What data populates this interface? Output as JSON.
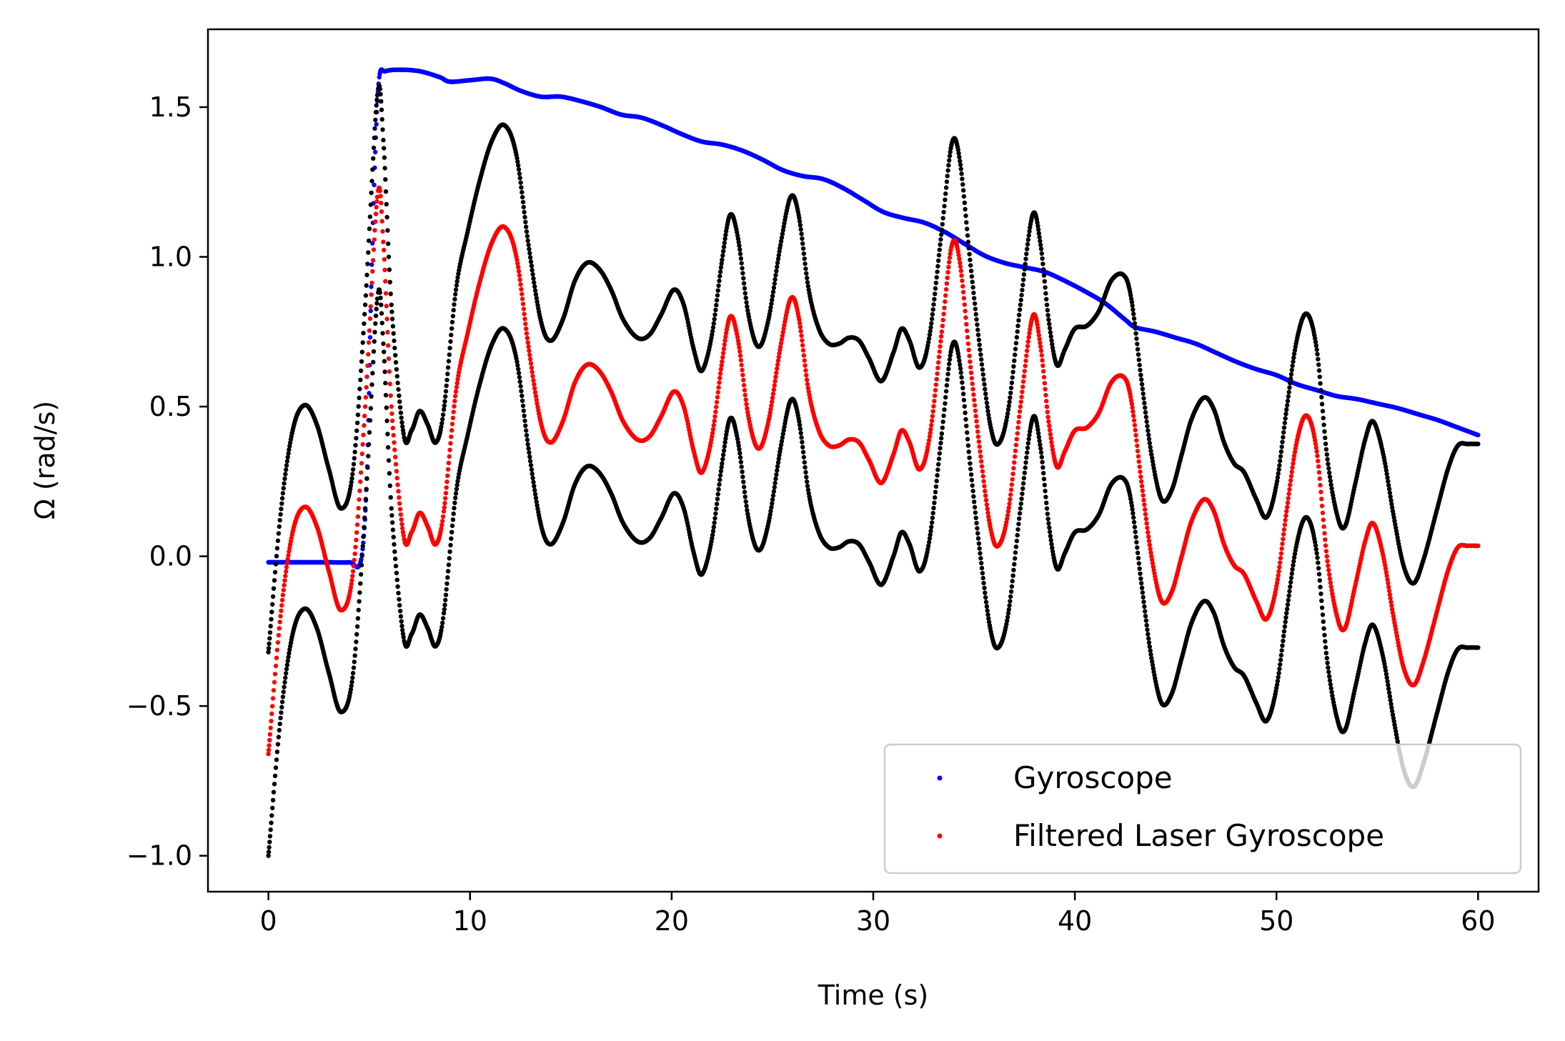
{
  "chart_data": {
    "type": "scatter",
    "title": "",
    "xlabel": "Time (s)",
    "ylabel": "Ω (rad/s)",
    "xlim": [
      -3,
      63
    ],
    "ylim": [
      -1.12,
      1.76
    ],
    "xticks": [
      0,
      10,
      20,
      30,
      40,
      50,
      60
    ],
    "xtick_labels": [
      "0",
      "10",
      "20",
      "30",
      "40",
      "50",
      "60"
    ],
    "yticks": [
      -1.0,
      -0.5,
      0.0,
      0.5,
      1.0,
      1.5
    ],
    "ytick_labels": [
      "−1.0",
      "−0.5",
      "0.0",
      "0.5",
      "1.0",
      "1.5"
    ],
    "grid": false,
    "legend_position": "lower-right",
    "colors": {
      "gyroscope": "#0000ff",
      "filtered": "#ff0000",
      "bounds": "#000000"
    },
    "series": [
      {
        "name": "Gyroscope",
        "color": "#0000ff",
        "in_legend": true,
        "points": [
          [
            0,
            -0.02
          ],
          [
            1,
            -0.02
          ],
          [
            2,
            -0.02
          ],
          [
            3,
            -0.02
          ],
          [
            4,
            -0.02
          ],
          [
            4.6,
            -0.01
          ],
          [
            4.9,
            0.3
          ],
          [
            5.1,
            0.9
          ],
          [
            5.3,
            1.35
          ],
          [
            5.5,
            1.6
          ],
          [
            5.8,
            1.62
          ],
          [
            6.5,
            1.625
          ],
          [
            7.5,
            1.62
          ],
          [
            8.5,
            1.6
          ],
          [
            9,
            1.585
          ],
          [
            10,
            1.59
          ],
          [
            11,
            1.595
          ],
          [
            11.7,
            1.58
          ],
          [
            12.5,
            1.555
          ],
          [
            13.5,
            1.535
          ],
          [
            14.5,
            1.535
          ],
          [
            15.5,
            1.52
          ],
          [
            16.5,
            1.5
          ],
          [
            17.5,
            1.475
          ],
          [
            18.5,
            1.465
          ],
          [
            19.5,
            1.44
          ],
          [
            20.5,
            1.41
          ],
          [
            21.5,
            1.385
          ],
          [
            22.5,
            1.375
          ],
          [
            23.5,
            1.355
          ],
          [
            24.5,
            1.325
          ],
          [
            25.5,
            1.29
          ],
          [
            26.5,
            1.27
          ],
          [
            27.5,
            1.26
          ],
          [
            28.5,
            1.23
          ],
          [
            29.5,
            1.19
          ],
          [
            30.5,
            1.15
          ],
          [
            31.5,
            1.13
          ],
          [
            32.5,
            1.115
          ],
          [
            33.5,
            1.085
          ],
          [
            34.5,
            1.045
          ],
          [
            35.5,
            1.005
          ],
          [
            36.5,
            0.98
          ],
          [
            37.5,
            0.965
          ],
          [
            38.5,
            0.95
          ],
          [
            39.5,
            0.92
          ],
          [
            40.5,
            0.885
          ],
          [
            41.5,
            0.845
          ],
          [
            42.5,
            0.79
          ],
          [
            43,
            0.765
          ],
          [
            44,
            0.75
          ],
          [
            45,
            0.73
          ],
          [
            46,
            0.71
          ],
          [
            47,
            0.68
          ],
          [
            48,
            0.65
          ],
          [
            49,
            0.625
          ],
          [
            50,
            0.605
          ],
          [
            51,
            0.575
          ],
          [
            52,
            0.555
          ],
          [
            53,
            0.535
          ],
          [
            54,
            0.525
          ],
          [
            55,
            0.51
          ],
          [
            56,
            0.495
          ],
          [
            57,
            0.475
          ],
          [
            58,
            0.455
          ],
          [
            59,
            0.43
          ],
          [
            60,
            0.405
          ]
        ]
      },
      {
        "name": "Filtered Laser Gyroscope",
        "color": "#ff0000",
        "in_legend": true,
        "points": [
          [
            0,
            -0.66
          ],
          [
            0.6,
            -0.2
          ],
          [
            1.2,
            0.08
          ],
          [
            1.8,
            0.165
          ],
          [
            2.4,
            0.1
          ],
          [
            3,
            -0.05
          ],
          [
            3.6,
            -0.18
          ],
          [
            4.2,
            -0.05
          ],
          [
            4.8,
            0.5
          ],
          [
            5.4,
            1.2
          ],
          [
            5.7,
            1.05
          ],
          [
            6.1,
            0.5
          ],
          [
            6.7,
            0.07
          ],
          [
            7.1,
            0.08
          ],
          [
            7.5,
            0.145
          ],
          [
            7.9,
            0.1
          ],
          [
            8.3,
            0.04
          ],
          [
            8.7,
            0.15
          ],
          [
            9.3,
            0.55
          ],
          [
            9.9,
            0.75
          ],
          [
            10.5,
            0.92
          ],
          [
            11.1,
            1.05
          ],
          [
            11.7,
            1.1
          ],
          [
            12.3,
            1.0
          ],
          [
            12.9,
            0.7
          ],
          [
            13.5,
            0.45
          ],
          [
            14,
            0.38
          ],
          [
            14.6,
            0.45
          ],
          [
            15.2,
            0.58
          ],
          [
            15.8,
            0.64
          ],
          [
            16.4,
            0.62
          ],
          [
            17,
            0.55
          ],
          [
            17.6,
            0.45
          ],
          [
            18.3,
            0.39
          ],
          [
            18.9,
            0.4
          ],
          [
            19.5,
            0.47
          ],
          [
            20.1,
            0.55
          ],
          [
            20.6,
            0.5
          ],
          [
            21.1,
            0.35
          ],
          [
            21.5,
            0.28
          ],
          [
            22,
            0.4
          ],
          [
            22.5,
            0.65
          ],
          [
            22.9,
            0.8
          ],
          [
            23.3,
            0.72
          ],
          [
            23.8,
            0.47
          ],
          [
            24.3,
            0.36
          ],
          [
            24.8,
            0.45
          ],
          [
            25.4,
            0.7
          ],
          [
            25.9,
            0.86
          ],
          [
            26.3,
            0.8
          ],
          [
            26.8,
            0.55
          ],
          [
            27.3,
            0.42
          ],
          [
            27.8,
            0.37
          ],
          [
            28.3,
            0.37
          ],
          [
            28.8,
            0.39
          ],
          [
            29.3,
            0.38
          ],
          [
            29.8,
            0.32
          ],
          [
            30.4,
            0.245
          ],
          [
            31,
            0.34
          ],
          [
            31.4,
            0.42
          ],
          [
            31.8,
            0.38
          ],
          [
            32.3,
            0.29
          ],
          [
            32.8,
            0.4
          ],
          [
            33.4,
            0.75
          ],
          [
            33.9,
            1.04
          ],
          [
            34.3,
            0.98
          ],
          [
            34.8,
            0.65
          ],
          [
            35.3,
            0.35
          ],
          [
            35.8,
            0.1
          ],
          [
            36.2,
            0.035
          ],
          [
            36.7,
            0.15
          ],
          [
            37.3,
            0.5
          ],
          [
            37.9,
            0.8
          ],
          [
            38.3,
            0.7
          ],
          [
            38.7,
            0.45
          ],
          [
            39.1,
            0.3
          ],
          [
            39.5,
            0.35
          ],
          [
            40,
            0.42
          ],
          [
            40.6,
            0.43
          ],
          [
            41.2,
            0.48
          ],
          [
            41.8,
            0.58
          ],
          [
            42.4,
            0.6
          ],
          [
            42.8,
            0.52
          ],
          [
            43.3,
            0.25
          ],
          [
            43.8,
            0.0
          ],
          [
            44.3,
            -0.15
          ],
          [
            44.8,
            -0.12
          ],
          [
            45.3,
            0.0
          ],
          [
            45.8,
            0.12
          ],
          [
            46.4,
            0.19
          ],
          [
            46.9,
            0.15
          ],
          [
            47.4,
            0.04
          ],
          [
            47.9,
            -0.03
          ],
          [
            48.4,
            -0.06
          ],
          [
            49,
            -0.15
          ],
          [
            49.5,
            -0.21
          ],
          [
            50,
            -0.1
          ],
          [
            50.5,
            0.15
          ],
          [
            51,
            0.38
          ],
          [
            51.5,
            0.47
          ],
          [
            52,
            0.35
          ],
          [
            52.5,
            0.0
          ],
          [
            53,
            -0.2
          ],
          [
            53.4,
            -0.24
          ],
          [
            53.9,
            -0.1
          ],
          [
            54.4,
            0.05
          ],
          [
            54.8,
            0.11
          ],
          [
            55.3,
            0.0
          ],
          [
            55.8,
            -0.2
          ],
          [
            56.3,
            -0.37
          ],
          [
            56.8,
            -0.43
          ],
          [
            57.3,
            -0.35
          ],
          [
            57.9,
            -0.2
          ],
          [
            58.5,
            -0.05
          ],
          [
            59,
            0.03
          ],
          [
            59.5,
            0.035
          ],
          [
            60,
            0.035
          ]
        ]
      },
      {
        "name": "",
        "color": "#000000",
        "in_legend": false,
        "offset": 0.34,
        "derived_from": "Filtered Laser Gyroscope"
      },
      {
        "name": "",
        "color": "#000000",
        "in_legend": false,
        "offset": -0.34,
        "derived_from": "Filtered Laser Gyroscope"
      }
    ],
    "legend": [
      {
        "label": "Gyroscope",
        "color": "#0000ff"
      },
      {
        "label": "Filtered Laser Gyroscope",
        "color": "#ff0000"
      }
    ]
  }
}
